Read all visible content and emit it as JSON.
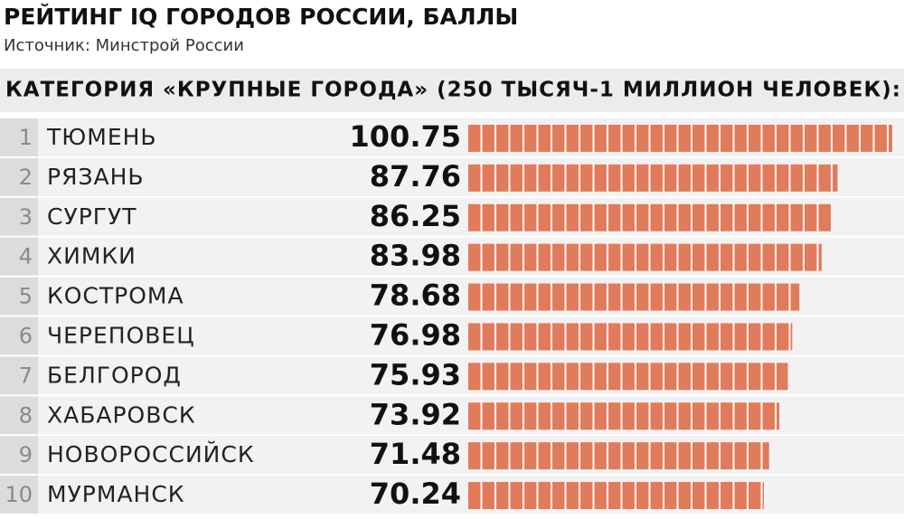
{
  "chart_data": {
    "type": "bar",
    "orientation": "horizontal",
    "title": "РЕЙТИНГ IQ ГОРОДОВ РОССИИ, БАЛЛЫ",
    "subtitle": "Источник: Минстрой России",
    "category_heading": "КАТЕГОРИЯ «КРУПНЫЕ ГОРОДА» (250 ТЫСЯЧ-1 МИЛЛИОН ЧЕЛОВЕК):",
    "ranks": [
      1,
      2,
      3,
      4,
      5,
      6,
      7,
      8,
      9,
      10
    ],
    "categories": [
      "ТЮМЕНЬ",
      "РЯЗАНЬ",
      "СУРГУТ",
      "ХИМКИ",
      "КОСТРОМА",
      "ЧЕРЕПОВЕЦ",
      "БЕЛГОРОД",
      "ХАБАРОВСК",
      "НОВОРОССИЙСК",
      "МУРМАНСК"
    ],
    "values": [
      100.75,
      87.76,
      86.25,
      83.98,
      78.68,
      76.98,
      75.93,
      73.92,
      71.48,
      70.24
    ],
    "color": "#e07b5b"
  }
}
